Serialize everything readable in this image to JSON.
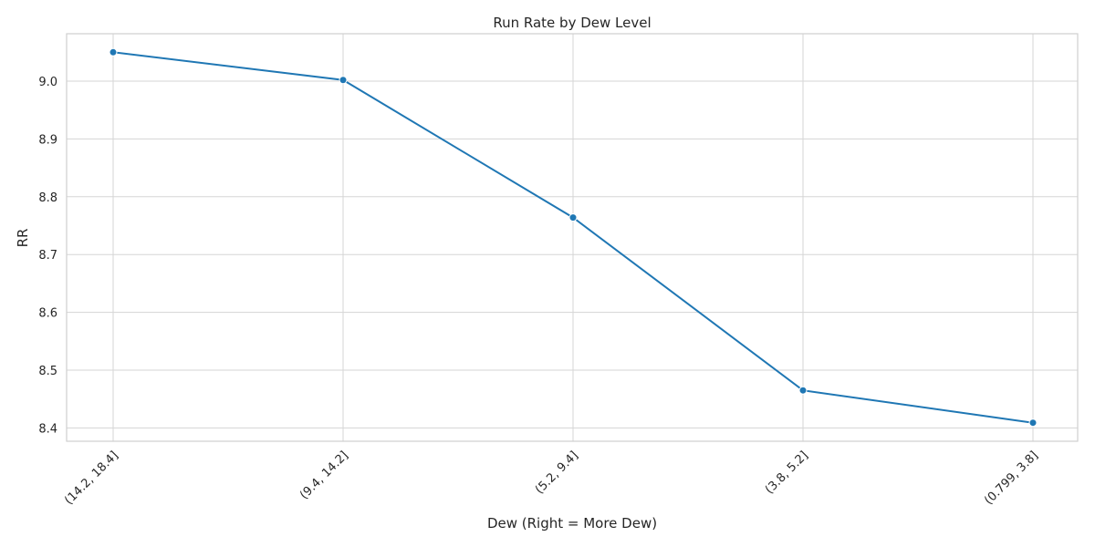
{
  "chart_data": {
    "type": "line",
    "title": "Run Rate by Dew Level",
    "xlabel": "Dew (Right = More Dew)",
    "ylabel": "RR",
    "categories": [
      "(14.2, 18.4]",
      "(9.4, 14.2]",
      "(5.2, 9.4]",
      "(3.8, 5.2]",
      "(0.799, 3.8]"
    ],
    "series": [
      {
        "values": [
          9.05,
          9.002,
          8.764,
          8.465,
          8.409
        ]
      }
    ],
    "yticks": [
      8.4,
      8.5,
      8.6,
      8.7,
      8.8,
      8.9,
      9.0
    ],
    "ytick_labels": [
      "8.4",
      "8.5",
      "8.6",
      "8.7",
      "8.8",
      "8.9",
      "9.0"
    ],
    "ylim": [
      8.377,
      9.082
    ],
    "grid": true,
    "colors": {
      "line": "#1f77b4",
      "grid": "#d5d5d5",
      "frame": "#cfcfcf"
    }
  }
}
